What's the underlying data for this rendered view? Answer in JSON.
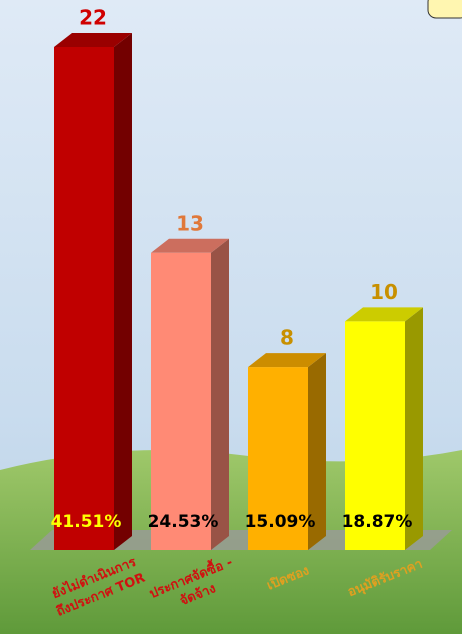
{
  "chart_data": {
    "type": "bar3d",
    "categories": [
      [
        "ยังไม่ดำเนินการ",
        "ถึงประกาศ TOR"
      ],
      [
        "ประกาศจัดซื้อ -",
        "จัดจ้าง"
      ],
      [
        "เปิดซอง"
      ],
      [
        "อนุมัติรับราคา"
      ]
    ],
    "values": [
      22,
      13,
      8,
      10
    ],
    "percent_labels": [
      "41.51%",
      "24.53%",
      "15.09%",
      "18.87%"
    ],
    "colors": [
      "#c00000",
      "#ff8a75",
      "#ffb000",
      "#ffff00"
    ],
    "value_label_colors": [
      "#d00000",
      "#e0783a",
      "#c89000",
      "#c89000"
    ]
  }
}
